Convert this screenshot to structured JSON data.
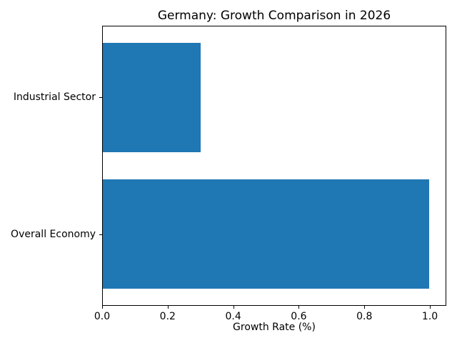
{
  "chart_data": {
    "type": "bar",
    "orientation": "horizontal",
    "title": "Germany: Growth Comparison in 2026",
    "xlabel": "Growth Rate (%)",
    "ylabel": "",
    "categories": [
      "Industrial Sector",
      "Overall Economy"
    ],
    "values": [
      0.3,
      1.0
    ],
    "xticks": [
      0.0,
      0.2,
      0.4,
      0.6,
      0.8,
      1.0
    ],
    "xlim": [
      0.0,
      1.05
    ],
    "grid": false,
    "legend_position": "none",
    "bar_color": "#1f77b4",
    "spine_color": "#000000",
    "text_color": "#000000",
    "background_color": "#ffffff"
  }
}
